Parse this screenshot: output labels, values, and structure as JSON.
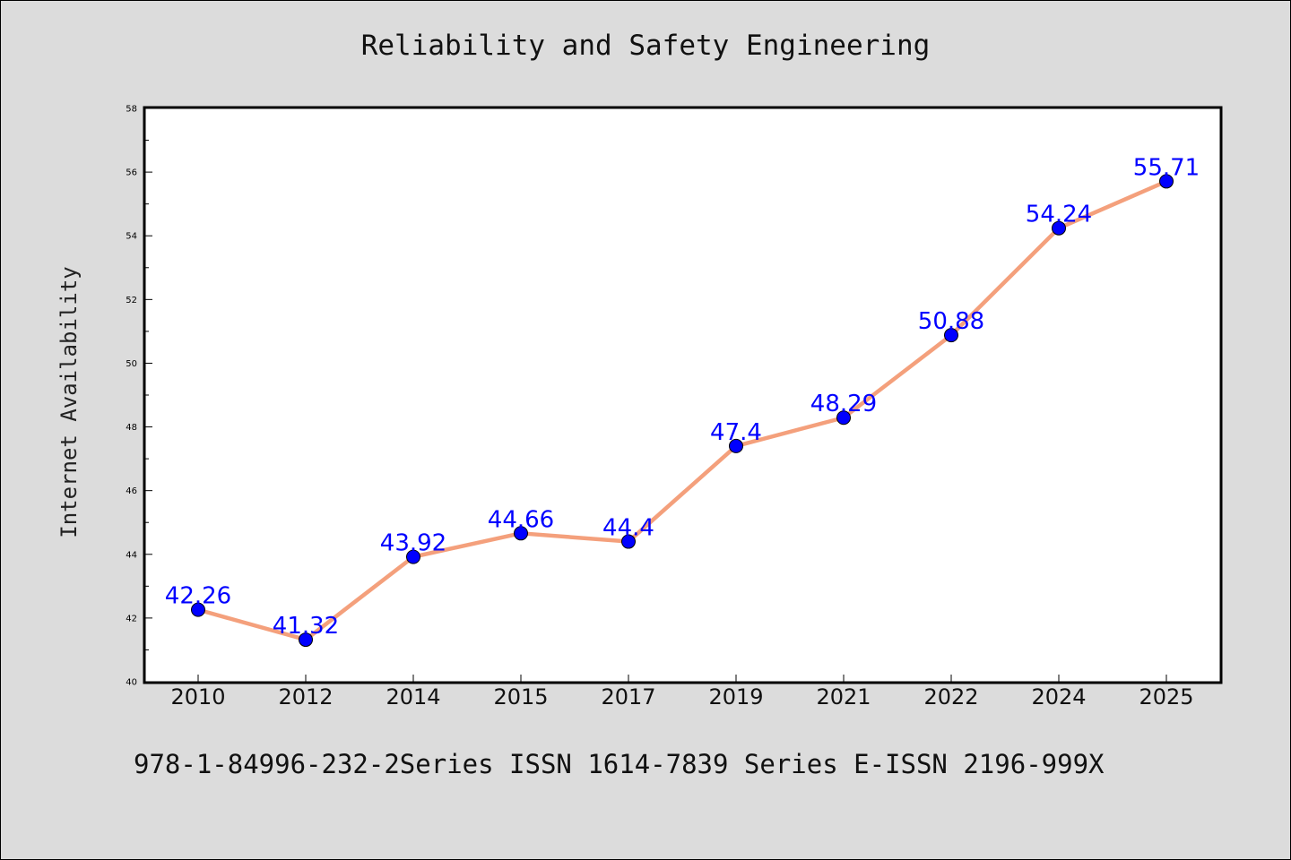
{
  "chart_data": {
    "type": "line",
    "title": "Reliability and Safety Engineering",
    "xlabel": "",
    "ylabel": "Internet Availability",
    "categories": [
      "2010",
      "2012",
      "2014",
      "2015",
      "2017",
      "2019",
      "2021",
      "2022",
      "2024",
      "2025"
    ],
    "series": [
      {
        "values": [
          42.26,
          41.32,
          43.92,
          44.66,
          44.4,
          47.4,
          48.29,
          50.88,
          54.24,
          55.71
        ],
        "data_labels": [
          "42.26",
          "41.32",
          "43.92",
          "44.66",
          "44.4",
          "47.4",
          "48.29",
          "50.88",
          "54.24",
          "55.71"
        ],
        "line_color": "#f4a07c",
        "marker_color": "#0000ff"
      }
    ],
    "ylim": [
      40,
      58
    ],
    "yticks": [
      "40",
      "42",
      "44",
      "46",
      "48",
      "50",
      "52",
      "54",
      "56",
      "58"
    ],
    "grid": false,
    "legend": "none"
  },
  "footer": {
    "text": "978-1-84996-232-2Series ISSN 1614-7839 Series E-ISSN 2196-999X"
  },
  "colors": {
    "background": "#dcdcdc",
    "plot_area": "#ffffff",
    "line": "#f4a07c",
    "marker": "#0000ff",
    "data_label": "#0000ff"
  }
}
